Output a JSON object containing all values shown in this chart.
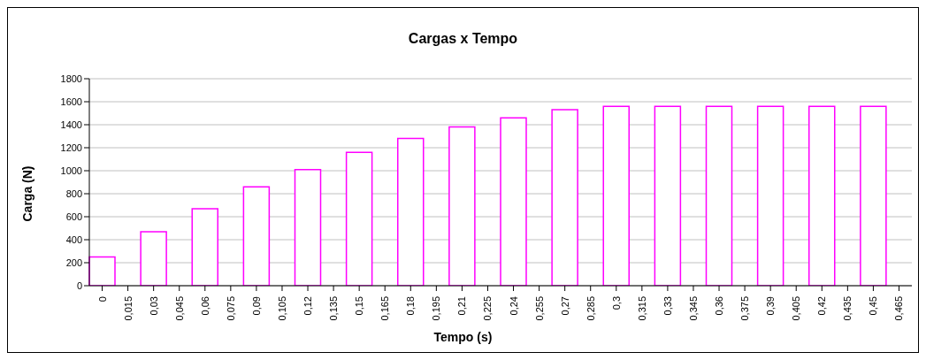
{
  "chart_data": {
    "type": "bar",
    "title": "Cargas x Tempo",
    "xlabel": "Tempo (s)",
    "ylabel": "Carga (N)",
    "categories": [
      "0",
      "0,015",
      "0,03",
      "0,045",
      "0,06",
      "0,075",
      "0,09",
      "0,105",
      "0,12",
      "0,135",
      "0,15",
      "0,165",
      "0,18",
      "0,195",
      "0,21",
      "0,225",
      "0,24",
      "0,255",
      "0,27",
      "0,285",
      "0,3",
      "0,315",
      "0,33",
      "0,345",
      "0,36",
      "0,375",
      "0,39",
      "0,405",
      "0,42",
      "0,435",
      "0,45",
      "0,465"
    ],
    "values": [
      250,
      0,
      470,
      0,
      670,
      0,
      860,
      0,
      1010,
      0,
      1160,
      0,
      1280,
      0,
      1380,
      0,
      1460,
      0,
      1530,
      0,
      1560,
      0,
      1560,
      0,
      1560,
      0,
      1560,
      0,
      1560,
      0,
      1560,
      0
    ],
    "color": "#ff00ff",
    "ylim": [
      0,
      1800
    ],
    "yticks": [
      0,
      200,
      400,
      600,
      800,
      1000,
      1200,
      1400,
      1600,
      1800
    ],
    "grid": "y"
  }
}
